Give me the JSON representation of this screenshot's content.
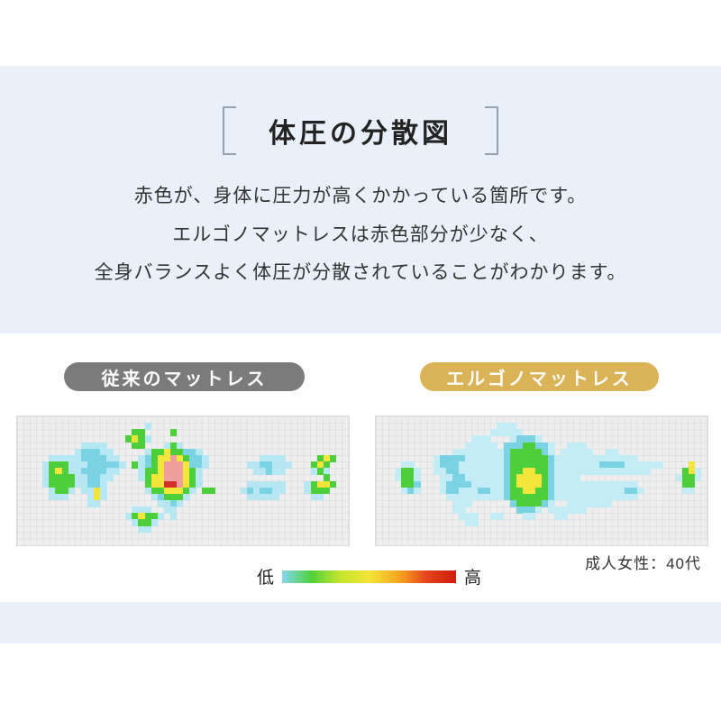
{
  "header": {
    "title": "体圧の分散図"
  },
  "description": {
    "lines": [
      "赤色が、身体に圧力が高くかかっている箇所です。",
      "エルゴノマットレスは赤色部分が少なく、",
      "全身バランスよく体圧が分散されていることがわかります。"
    ]
  },
  "panels": [
    {
      "label": "従来のマットレス",
      "badge_color": "#7b7b7b"
    },
    {
      "label": "エルゴノマットレス",
      "badge_color": "#d9b356"
    }
  ],
  "legend": {
    "low": "低",
    "high": "高",
    "gradient": [
      "#85d7f2",
      "#4fd13c",
      "#c4e52e",
      "#f3e53a",
      "#f7a823",
      "#e5431c",
      "#cf1d0a"
    ]
  },
  "caption": "成人女性：40代",
  "colors": {
    "band": "#e9f0f9",
    "grid_background": "#efefef",
    "bracket": "#96a2b2"
  },
  "chart_data": [
    {
      "type": "heatmap",
      "name": "従来のマットレス",
      "rows": 20,
      "cols": 52,
      "palette": {
        "a": "#b7e7f3",
        "b": "#7bd2e2",
        "g": "#4ccf3a",
        "y": "#f3e53a",
        "p": "#ef9e9e",
        "r": "#d22f28"
      },
      "value_scale": {
        "low_label": "低",
        "high_label": "高"
      },
      "grid": [
        "....................................................",
        "....................a...............................",
        "..................gg....g...........................",
        ".................gyga...............................",
        "..........aaaa....gg...aga..........................",
        ".........abbbaa.....aggyggbba.......................",
        ".....aaaaabbbbaa...abgyypygbba........aaaa.....gyg..",
        "....agggaaabbbbba.gabgypppybba......aabbaaa...gyg...",
        "....agygaabbbbaa...aggypppyga........aabaa....aga...",
        "....aggggaabbaa....agyypppyga...................g...",
        "....aggggaabba......gyyrrpyga.......aaaaaa...agyyg..",
        ".....agga.aaya......aggyyyga.gg....ababbaa...aggg...",
        ".....aaa...aya.......abggga.........aaaaa.....aa....",
        "...........aa.........aaba..........................",
        "..................aaa..aa...........................",
        ".................agygga.a...........................",
        "..................agga..............................",
        "...................aa...............................",
        "....................................................",
        "...................................................."
      ]
    },
    {
      "type": "heatmap",
      "name": "エルゴノマットレス",
      "rows": 20,
      "cols": 52,
      "palette": {
        "a": "#c3ecf6",
        "b": "#7bd2e2",
        "g": "#4ccf3a",
        "y": "#f3e53a",
        "p": "#ef9e9e",
        "r": "#d22f28"
      },
      "value_scale": {
        "low_label": "低",
        "high_label": "高"
      },
      "grid": [
        "....................................................",
        "...................aaa..............................",
        "..................aaaaa.............................",
        "...............aaa...abbba..........................",
        "..............aaaaa.bbbggbba..aaa...................",
        "............aaaaaaaabgggggba.aaaaa..aa..............",
        ".........abbbbaaaaaabggggggbaaaaaaaaaaaaa...........",
        "....aa...abbbaaaaaaabggggggbaaaaaaabbbbaaaaaa....y..",
        "...agga..aabbaaaaaaabggyyggbaaaaaaaaaaaaaaa.....gya.",
        "...agga...aabbaaaaaabgyyyygbaaaa...............agga.",
        "....ggb...abbbbaaaaabgyyyygbaaaaaaaaaaaaa.......gg..",
        "....aba...abbaaabbaabggyyggbaaaaaaaaaaabba......aa..",
        "...........aaaaaaaaabggggggbaaaaaaaaaaaaa...........",
        "............aaa......bggggba..aaaaaaa...............",
        "............aa........bbba.aaaaaa...................",
        ".............aaa..aa...aa...aa......................",
        "..............aa....................................",
        "....................................................",
        "....................................................",
        "...................................................."
      ]
    }
  ]
}
